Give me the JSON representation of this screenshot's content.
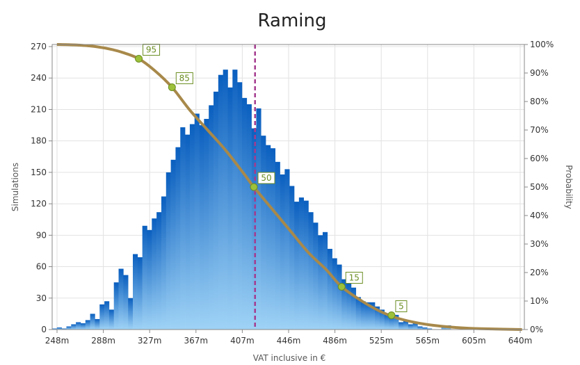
{
  "chart_data": {
    "type": "bar",
    "title": "Raming",
    "xlabel": "VAT inclusive in €",
    "ylabel": "Simulations",
    "y2label": "Probability",
    "x_ticks": [
      "248m",
      "288m",
      "327m",
      "367m",
      "407m",
      "446m",
      "486m",
      "525m",
      "565m",
      "605m",
      "640m"
    ],
    "x_range_m": [
      244,
      642
    ],
    "y_ticks": [
      0,
      30,
      60,
      90,
      120,
      150,
      180,
      210,
      240,
      270
    ],
    "y_range": [
      0,
      272
    ],
    "y2_ticks": [
      "0%",
      "10%",
      "20%",
      "30%",
      "40%",
      "50%",
      "60%",
      "70%",
      "80%",
      "90%",
      "100%"
    ],
    "bin_start_m": 244,
    "bin_width_m": 4,
    "histogram_values": [
      1,
      2,
      1,
      3,
      5,
      7,
      6,
      9,
      15,
      10,
      24,
      27,
      19,
      45,
      58,
      52,
      30,
      72,
      69,
      99,
      95,
      106,
      112,
      127,
      150,
      162,
      174,
      193,
      186,
      196,
      206,
      195,
      201,
      214,
      227,
      243,
      248,
      231,
      248,
      236,
      221,
      215,
      192,
      211,
      185,
      176,
      173,
      160,
      148,
      153,
      137,
      122,
      126,
      123,
      112,
      102,
      90,
      93,
      77,
      68,
      62,
      48,
      44,
      40,
      31,
      27,
      26,
      26,
      22,
      19,
      15,
      13,
      14,
      7,
      8,
      5,
      6,
      3,
      2,
      1,
      0,
      0,
      3,
      4
    ],
    "median_line_m": 415,
    "percentile_curve": [
      {
        "x": 248,
        "p": 100
      },
      {
        "x": 265,
        "p": 99.8
      },
      {
        "x": 280,
        "p": 99.3
      },
      {
        "x": 295,
        "p": 98.2
      },
      {
        "x": 305,
        "p": 97
      },
      {
        "x": 317,
        "p": 95
      },
      {
        "x": 330,
        "p": 91
      },
      {
        "x": 345,
        "p": 85
      },
      {
        "x": 360,
        "p": 77
      },
      {
        "x": 375,
        "p": 70
      },
      {
        "x": 390,
        "p": 63
      },
      {
        "x": 405,
        "p": 55
      },
      {
        "x": 414,
        "p": 50
      },
      {
        "x": 430,
        "p": 42
      },
      {
        "x": 446,
        "p": 34
      },
      {
        "x": 460,
        "p": 27
      },
      {
        "x": 475,
        "p": 21
      },
      {
        "x": 488,
        "p": 15
      },
      {
        "x": 505,
        "p": 10
      },
      {
        "x": 520,
        "p": 6.5
      },
      {
        "x": 535,
        "p": 4
      },
      {
        "x": 550,
        "p": 2.5
      },
      {
        "x": 565,
        "p": 1.5
      },
      {
        "x": 585,
        "p": 0.7
      },
      {
        "x": 605,
        "p": 0.3
      },
      {
        "x": 640,
        "p": 0
      }
    ],
    "markers": [
      {
        "label": "95",
        "x": 317,
        "p": 95
      },
      {
        "label": "85",
        "x": 345,
        "p": 85
      },
      {
        "label": "50",
        "x": 414,
        "p": 50
      },
      {
        "label": "15",
        "x": 488,
        "p": 15
      },
      {
        "label": "5",
        "x": 530,
        "p": 5
      }
    ],
    "colors": {
      "bar_top": "#0a5fbf",
      "bar_bottom": "#9fd3f6",
      "curve": "#a8894a",
      "marker_fill": "#9dc13a",
      "marker_stroke": "#6b8e23",
      "median_line": "#a43b8e",
      "grid": "#e2e2e2"
    },
    "grid": true
  }
}
